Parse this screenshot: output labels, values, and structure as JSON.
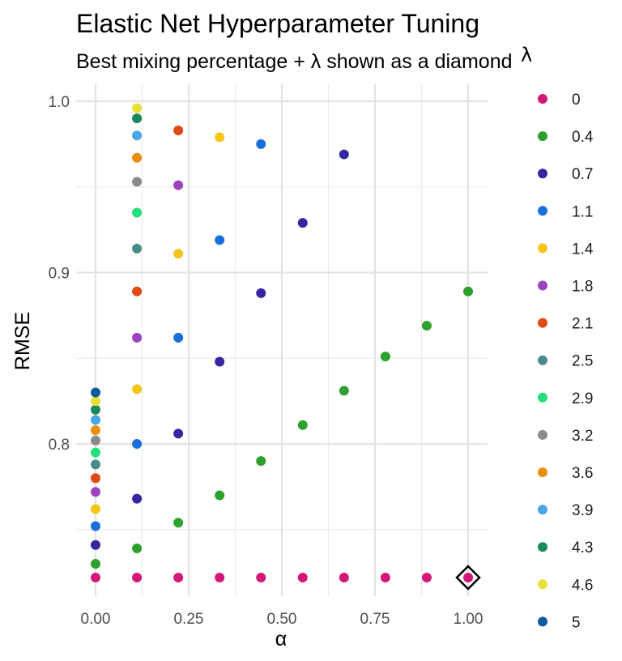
{
  "chart_data": {
    "type": "scatter",
    "title": "Elastic Net Hyperparameter Tuning",
    "subtitle": "Best mixing percentage + λ shown as a diamond",
    "xlabel": "α",
    "ylabel": "RMSE",
    "xlim": [
      0,
      1
    ],
    "ylim": [
      0.722,
      1.0
    ],
    "x_ticks": [
      "0.00",
      "0.25",
      "0.50",
      "0.75",
      "1.00"
    ],
    "x_tick_values": [
      0,
      0.25,
      0.5,
      0.75,
      1.0
    ],
    "y_ticks": [
      "0.8",
      "0.9",
      "1.0"
    ],
    "y_tick_values": [
      0.8,
      0.9,
      1.0
    ],
    "grid": true,
    "legend": {
      "title": "λ",
      "placement": "right"
    },
    "series": [
      {
        "name": "0",
        "color": "#d4187a",
        "points": [
          [
            0,
            0.722
          ],
          [
            0.111,
            0.722
          ],
          [
            0.222,
            0.722
          ],
          [
            0.333,
            0.722
          ],
          [
            0.444,
            0.722
          ],
          [
            0.556,
            0.722
          ],
          [
            0.667,
            0.722
          ],
          [
            0.778,
            0.722
          ],
          [
            0.889,
            0.722
          ],
          [
            1.0,
            0.722
          ]
        ]
      },
      {
        "name": "0.4",
        "color": "#2ea02e",
        "points": [
          [
            0,
            0.73
          ],
          [
            0.111,
            0.739
          ],
          [
            0.222,
            0.754
          ],
          [
            0.333,
            0.77
          ],
          [
            0.444,
            0.79
          ],
          [
            0.556,
            0.811
          ],
          [
            0.667,
            0.831
          ],
          [
            0.778,
            0.851
          ],
          [
            0.889,
            0.869
          ],
          [
            1.0,
            0.889
          ]
        ]
      },
      {
        "name": "0.7",
        "color": "#3527a1",
        "points": [
          [
            0,
            0.741
          ],
          [
            0.111,
            0.768
          ],
          [
            0.222,
            0.806
          ],
          [
            0.333,
            0.848
          ],
          [
            0.444,
            0.888
          ],
          [
            0.556,
            0.929
          ],
          [
            0.667,
            0.969
          ]
        ]
      },
      {
        "name": "1.1",
        "color": "#1a6fdb",
        "points": [
          [
            0,
            0.752
          ],
          [
            0.111,
            0.8
          ],
          [
            0.222,
            0.862
          ],
          [
            0.333,
            0.919
          ],
          [
            0.444,
            0.975
          ]
        ]
      },
      {
        "name": "1.4",
        "color": "#f5c518",
        "points": [
          [
            0,
            0.762
          ],
          [
            0.111,
            0.832
          ],
          [
            0.222,
            0.911
          ],
          [
            0.333,
            0.979
          ]
        ]
      },
      {
        "name": "1.8",
        "color": "#9b44c0",
        "points": [
          [
            0,
            0.772
          ],
          [
            0.111,
            0.862
          ],
          [
            0.222,
            0.951
          ]
        ]
      },
      {
        "name": "2.1",
        "color": "#e04a14",
        "points": [
          [
            0,
            0.78
          ],
          [
            0.111,
            0.889
          ],
          [
            0.222,
            0.983
          ]
        ]
      },
      {
        "name": "2.5",
        "color": "#4a8a8a",
        "points": [
          [
            0,
            0.788
          ],
          [
            0.111,
            0.914
          ]
        ]
      },
      {
        "name": "2.9",
        "color": "#22e07a",
        "points": [
          [
            0,
            0.795
          ],
          [
            0.111,
            0.935
          ]
        ]
      },
      {
        "name": "3.2",
        "color": "#8a8a8a",
        "points": [
          [
            0,
            0.802
          ],
          [
            0.111,
            0.953
          ]
        ]
      },
      {
        "name": "3.6",
        "color": "#e8900e",
        "points": [
          [
            0,
            0.808
          ],
          [
            0.111,
            0.967
          ]
        ]
      },
      {
        "name": "3.9",
        "color": "#4aa6e6",
        "points": [
          [
            0,
            0.814
          ],
          [
            0.111,
            0.98
          ]
        ]
      },
      {
        "name": "4.3",
        "color": "#1a8a5a",
        "points": [
          [
            0,
            0.82
          ],
          [
            0.111,
            0.99
          ]
        ]
      },
      {
        "name": "4.6",
        "color": "#e8e038",
        "points": [
          [
            0,
            0.825
          ],
          [
            0.111,
            0.996
          ]
        ]
      },
      {
        "name": "5",
        "color": "#0f5a9e",
        "points": [
          [
            0,
            0.83
          ]
        ]
      }
    ],
    "best": {
      "alpha": 1.0,
      "lambda": "0",
      "rmse": 0.722,
      "marker": "diamond"
    }
  }
}
